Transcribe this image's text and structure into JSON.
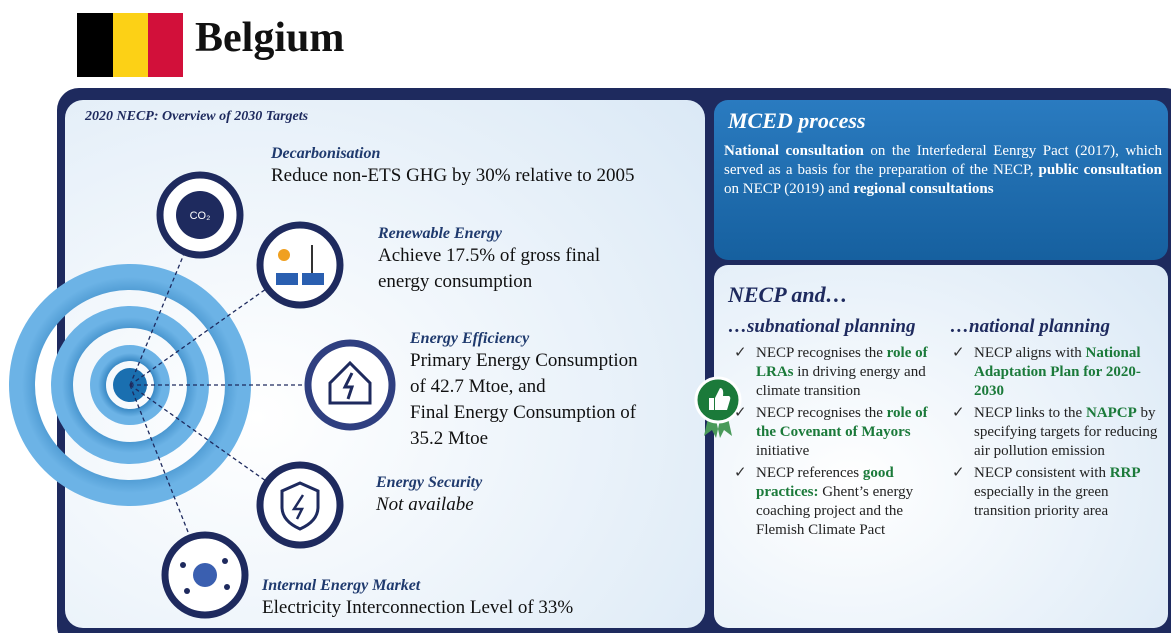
{
  "header": {
    "title": "Belgium"
  },
  "targets": {
    "heading": "2020 NECP: Overview of 2030 Targets",
    "items": [
      {
        "title": "Decarbonisation",
        "lines": [
          "Reduce non-ETS GHG by 30% relative to 2005"
        ]
      },
      {
        "title": "Renewable Energy",
        "lines": [
          "Achieve 17.5% of gross final",
          "energy consumption"
        ]
      },
      {
        "title": "Energy Efficiency",
        "lines": [
          "Primary Energy Consumption",
          "of 42.7 Mtoe, and",
          "Final Energy Consumption of",
          "35.2 Mtoe"
        ]
      },
      {
        "title": "Energy Security",
        "lines": [
          "Not availabe"
        ],
        "italic": true
      },
      {
        "title": "Internal Energy Market",
        "lines": [
          "Electricity Interconnection Level of 33%"
        ]
      }
    ]
  },
  "mced": {
    "title": "MCED process",
    "parts": [
      {
        "text": "National consultation",
        "bold": true
      },
      {
        "text": " on the Interfederal Eenrgy Pact (2017), which served as a basis for the preparation of the NECP, "
      },
      {
        "text": "public consultation",
        "bold": true
      },
      {
        "text": " on NECP (2019) and "
      },
      {
        "text": "regional consultations",
        "bold": true
      }
    ]
  },
  "necp": {
    "title": "NECP and…",
    "columns": [
      {
        "heading": "…subnational planning",
        "items": [
          [
            {
              "text": "NECP recognises the "
            },
            {
              "text": "role of LRAs",
              "bold": true
            },
            {
              "text": " in driving energy and climate transition"
            }
          ],
          [
            {
              "text": "NECP recognises the "
            },
            {
              "text": "role of the Covenant of Mayors",
              "bold": true
            },
            {
              "text": " initiative"
            }
          ],
          [
            {
              "text": "NECP references "
            },
            {
              "text": "good practices:",
              "bold": true
            },
            {
              "text": " Ghent’s energy coaching project and the Flemish Climate Pact"
            }
          ]
        ]
      },
      {
        "heading": "…national planning",
        "items": [
          [
            {
              "text": "NECP aligns with "
            },
            {
              "text": "National Adaptation Plan for 2020-2030",
              "bold": true
            }
          ],
          [
            {
              "text": "NECP links to the "
            },
            {
              "text": "NAPCP",
              "bold": true
            },
            {
              "text": " by specifying targets for reducing air pollution emission"
            }
          ],
          [
            {
              "text": "NECP consistent with "
            },
            {
              "text": "RRP",
              "bold": true
            },
            {
              "text": " especially in the green transition priority area"
            }
          ]
        ]
      }
    ]
  }
}
